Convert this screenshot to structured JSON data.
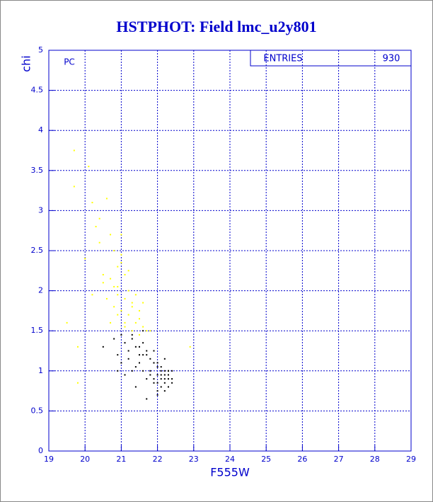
{
  "chart_data": {
    "type": "scatter",
    "title": "HSTPHOT: Field lmc_u2y801",
    "x_label": "F555W",
    "y_label": "chi",
    "annotation": "PC",
    "stats_label": "ENTRIES",
    "stats_value": "930",
    "xlim": [
      19,
      29
    ],
    "ylim": [
      0,
      5
    ],
    "xticks": [
      19,
      20,
      21,
      22,
      23,
      24,
      25,
      26,
      27,
      28,
      29
    ],
    "yticks": [
      0,
      0.5,
      1,
      1.5,
      2,
      2.5,
      3,
      3.5,
      4,
      4.5,
      5
    ],
    "grid": true,
    "series": [
      {
        "color": "#ffff00",
        "x": [
          19.7,
          19.7,
          20.1,
          20.2,
          20.3,
          19.5,
          19.8,
          20.0,
          20.4,
          20.6,
          20.7,
          20.8,
          20.9,
          21.0,
          21.1,
          21.2,
          20.5,
          20.6,
          20.7,
          20.8,
          20.9,
          21.0,
          21.1,
          21.2,
          21.3,
          21.4,
          21.5,
          21.6,
          21.7,
          20.9,
          21.0,
          21.1,
          21.3,
          21.4,
          21.5,
          20.4,
          20.5,
          20.8,
          21.2,
          21.8,
          22.9,
          19.8,
          20.2,
          21.6,
          21.0,
          20.7,
          21.3,
          20.9,
          21.1,
          21.5
        ],
        "values": [
          3.75,
          3.3,
          3.55,
          3.1,
          2.8,
          1.6,
          1.3,
          2.4,
          2.9,
          3.15,
          2.7,
          2.5,
          2.3,
          2.45,
          2.2,
          2.0,
          2.1,
          1.9,
          2.15,
          1.8,
          2.05,
          1.75,
          1.9,
          1.7,
          1.85,
          1.6,
          1.65,
          1.55,
          1.5,
          1.95,
          2.35,
          1.55,
          1.8,
          1.95,
          1.75,
          2.6,
          2.2,
          2.05,
          2.25,
          1.5,
          1.3,
          0.85,
          1.95,
          1.85,
          2.7,
          1.6,
          1.5,
          1.7,
          1.6,
          1.45
        ]
      },
      {
        "color": "#000000",
        "x": [
          20.5,
          20.8,
          20.9,
          21.0,
          21.1,
          21.2,
          21.3,
          21.4,
          21.5,
          21.6,
          21.7,
          21.8,
          21.9,
          22.0,
          22.1,
          22.2,
          22.3,
          22.4,
          21.0,
          21.2,
          21.4,
          21.6,
          21.8,
          22.0,
          22.2,
          22.4,
          21.1,
          21.3,
          21.5,
          21.7,
          21.9,
          22.1,
          22.3,
          21.5,
          21.7,
          21.9,
          22.1,
          22.3,
          22.0,
          22.2,
          21.8,
          22.0,
          22.2,
          22.4,
          21.6,
          21.9,
          22.1,
          22.3,
          22.0,
          22.2,
          21.3,
          21.6,
          21.9,
          22.1,
          22.3,
          20.9,
          21.4,
          21.7,
          22.0,
          22.2
        ],
        "values": [
          1.3,
          1.4,
          1.2,
          1.45,
          1.35,
          1.25,
          1.4,
          1.3,
          1.2,
          1.35,
          1.25,
          1.15,
          1.1,
          1.05,
          1.0,
          0.95,
          1.0,
          0.9,
          1.1,
          1.15,
          1.05,
          1.2,
          1.0,
          0.95,
          0.9,
          0.85,
          0.95,
          1.0,
          1.1,
          0.9,
          0.85,
          0.8,
          0.9,
          1.3,
          1.2,
          1.1,
          1.05,
          1.0,
          0.75,
          0.85,
          0.95,
          1.1,
          1.15,
          1.0,
          1.0,
          0.9,
          0.95,
          0.8,
          0.7,
          0.75,
          1.45,
          1.5,
          1.25,
          0.9,
          0.95,
          1.0,
          0.8,
          0.65,
          0.85,
          1.0
        ]
      }
    ]
  }
}
